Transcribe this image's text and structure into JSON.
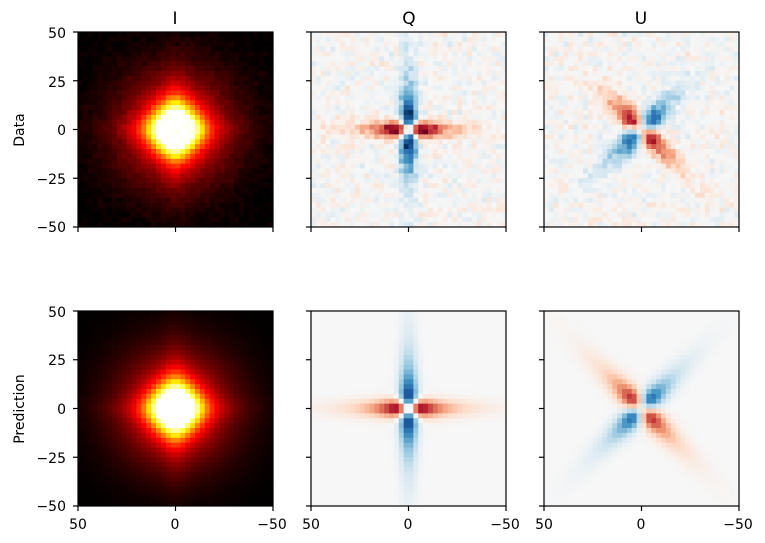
{
  "chart_data": {
    "type": "heatmap",
    "layout": {
      "rows": 2,
      "cols": 3
    },
    "column_titles": [
      "I",
      "Q",
      "U"
    ],
    "row_labels": [
      "Data",
      "Prediction"
    ],
    "x_ticks": [
      50,
      0,
      -50
    ],
    "y_ticks": [
      50,
      25,
      0,
      -25,
      -50
    ],
    "xlim": [
      50,
      -50
    ],
    "ylim": [
      -50,
      50
    ],
    "colormaps": {
      "I": "hot",
      "Q": "RdBu_r",
      "U": "RdBu_r"
    },
    "panels": [
      {
        "row": "Data",
        "column": "I",
        "kind": "intensity",
        "noisy": true
      },
      {
        "row": "Data",
        "column": "Q",
        "kind": "polar_Q",
        "noisy": true
      },
      {
        "row": "Data",
        "column": "U",
        "kind": "polar_U",
        "noisy": true
      },
      {
        "row": "Prediction",
        "column": "I",
        "kind": "intensity",
        "noisy": false
      },
      {
        "row": "Prediction",
        "column": "Q",
        "kind": "polar_Q",
        "noisy": false
      },
      {
        "row": "Prediction",
        "column": "U",
        "kind": "polar_U",
        "noisy": false
      }
    ]
  },
  "labels": {
    "col_I": "I",
    "col_Q": "Q",
    "col_U": "U",
    "row_data": "Data",
    "row_prediction": "Prediction",
    "tick_50": "50",
    "tick_25": "25",
    "tick_0": "0",
    "tick_m25": "−25",
    "tick_m50": "−50"
  }
}
